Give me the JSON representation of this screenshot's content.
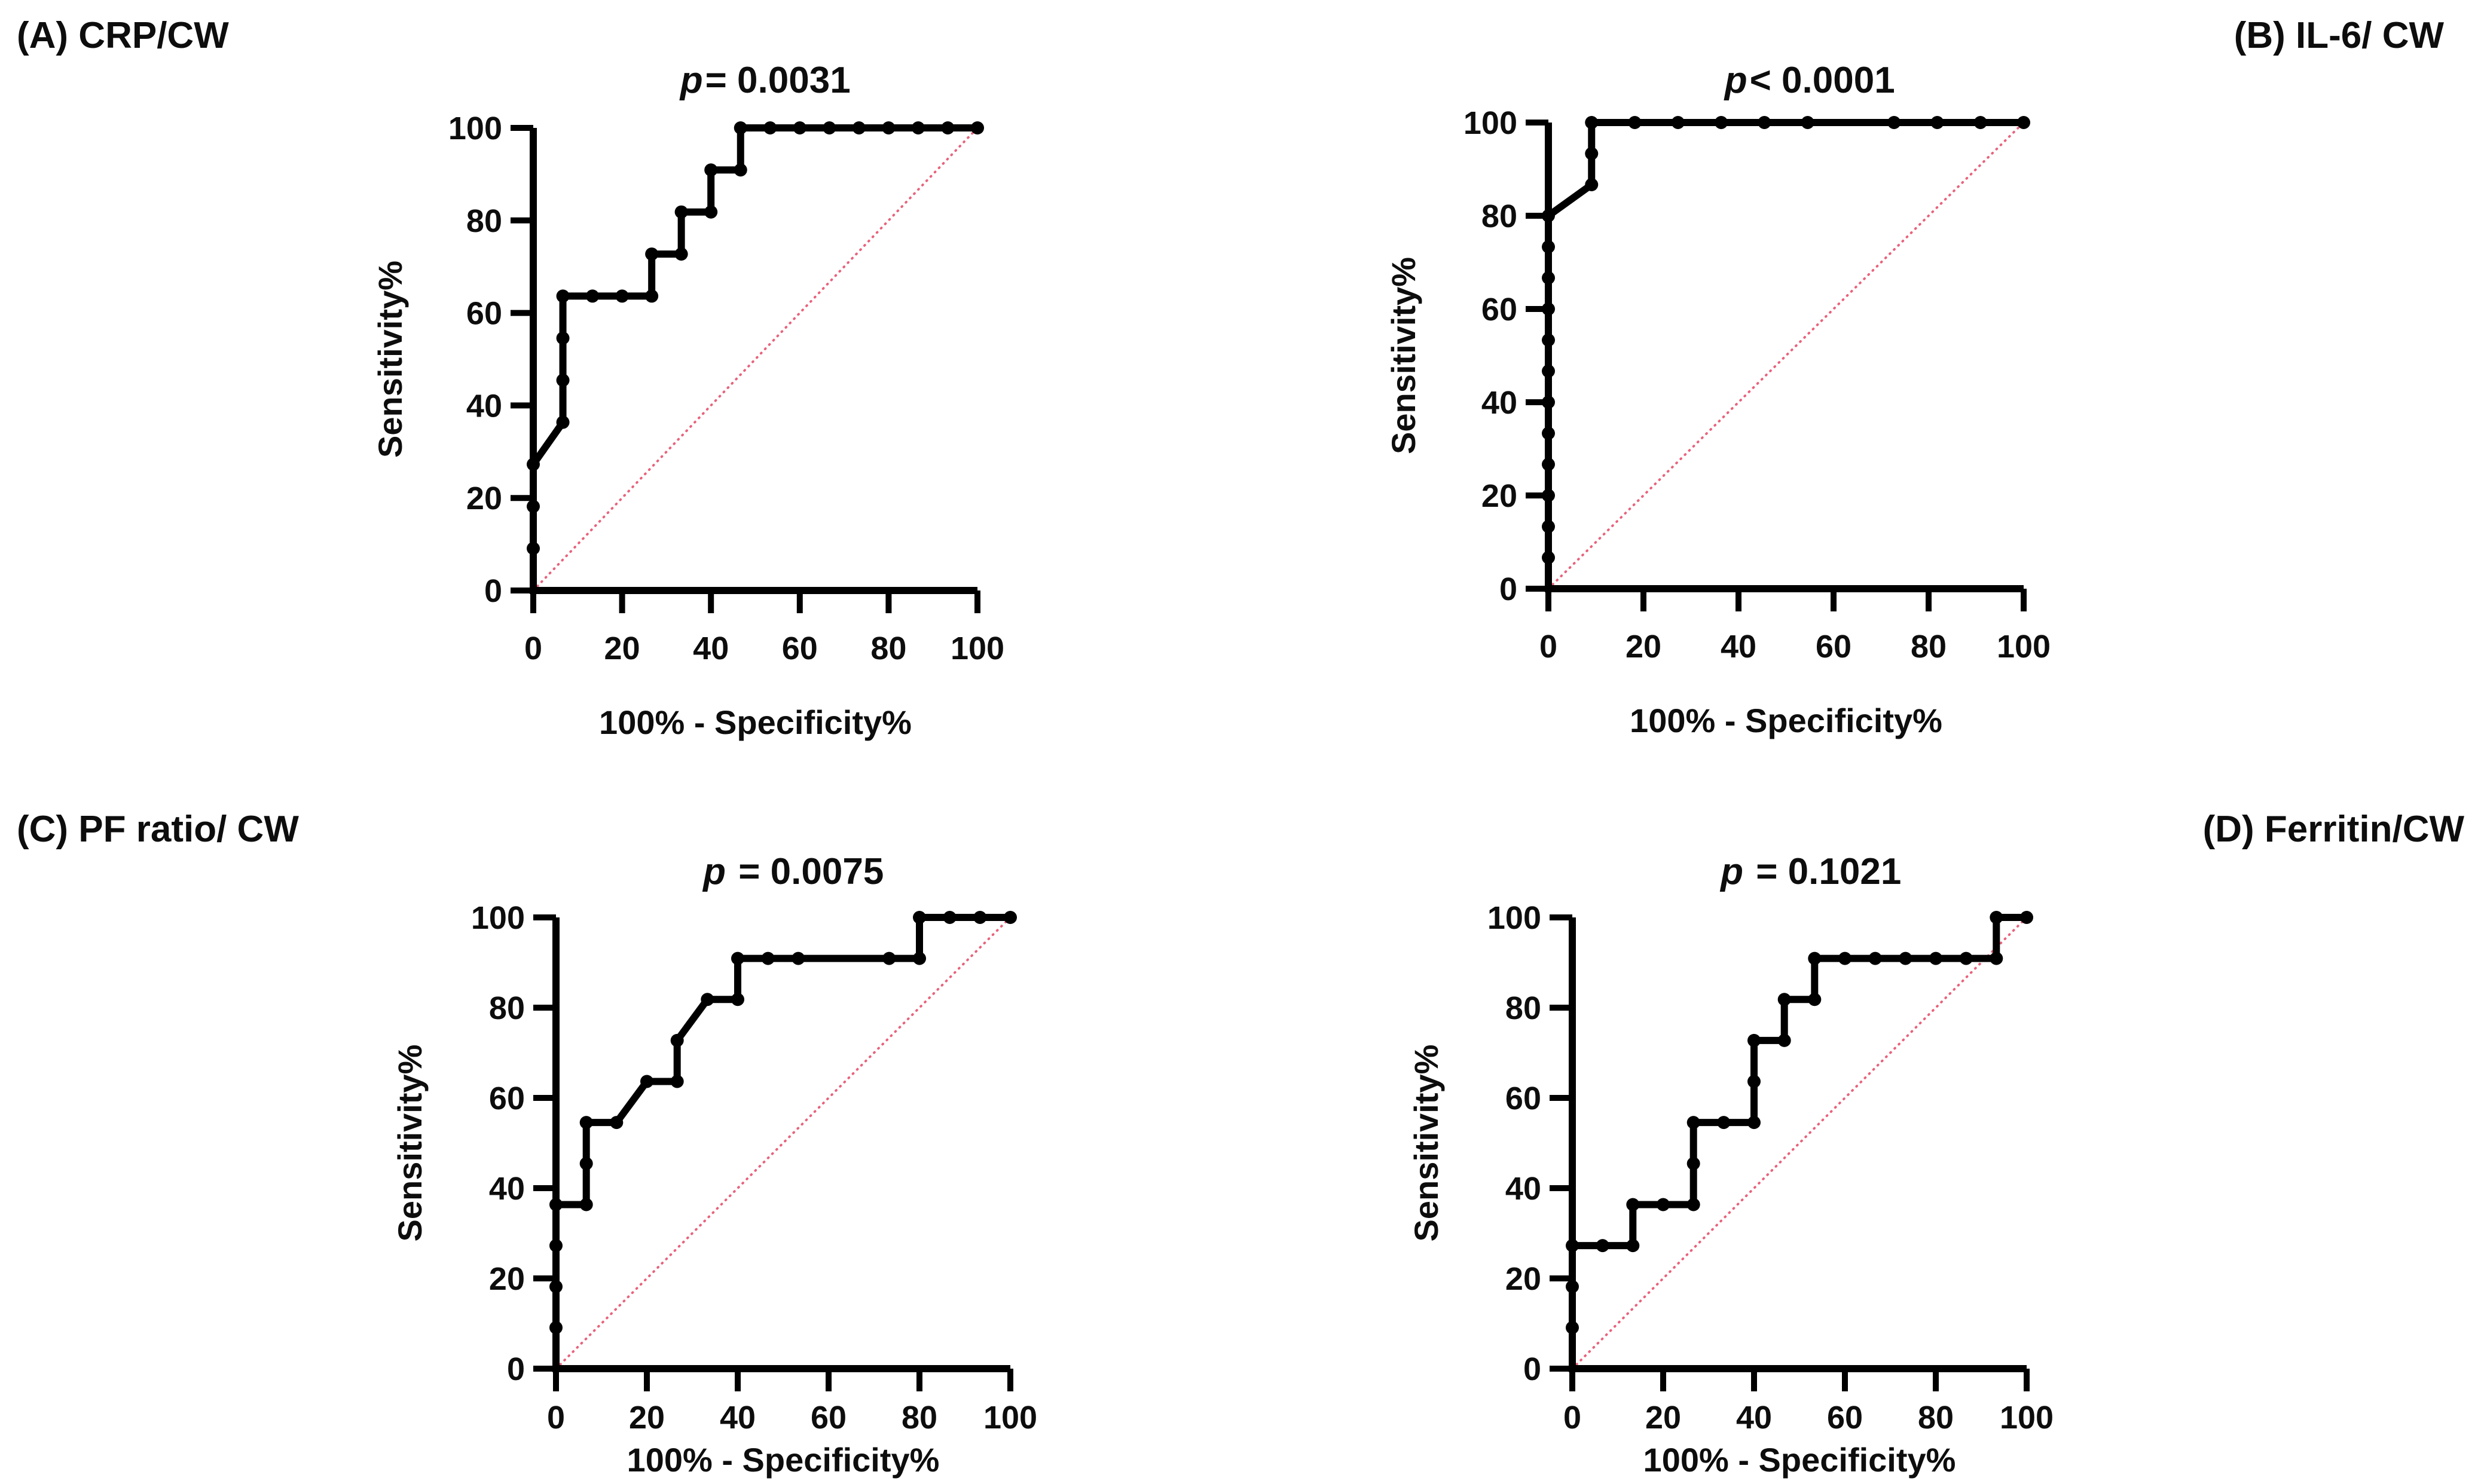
{
  "figure": {
    "background": "#ffffff",
    "text_color": "#0d0d0d",
    "curve_color": "#000000",
    "axis_color": "#000000",
    "reference_line_color": "#e8637c"
  },
  "chart_data": [
    {
      "id": "A",
      "type": "line",
      "panel_label": "(A) CRP/CW",
      "title": "p= 0.0031",
      "title_p": "p",
      "title_rest": "= 0.0031",
      "p_value": "0.0031",
      "xlabel": "100% - Specificity%",
      "ylabel": "Sensitivity%",
      "xlim": [
        0,
        100
      ],
      "ylim": [
        0,
        100
      ],
      "xticks": [
        0,
        20,
        40,
        60,
        80,
        100
      ],
      "yticks": [
        0,
        20,
        40,
        60,
        80,
        100
      ],
      "grid": false,
      "diagonal": {
        "from": [
          0,
          0
        ],
        "to": [
          100,
          100
        ],
        "color": "#e8637c",
        "style": "dotted"
      },
      "series": [
        {
          "name": "ROC curve",
          "color": "#000000",
          "points": [
            [
              0,
              0
            ],
            [
              0,
              9.09
            ],
            [
              0,
              18.18
            ],
            [
              0,
              27.27
            ],
            [
              6.67,
              36.36
            ],
            [
              6.67,
              45.45
            ],
            [
              6.67,
              54.55
            ],
            [
              6.67,
              63.64
            ],
            [
              13.33,
              63.64
            ],
            [
              20,
              63.64
            ],
            [
              26.67,
              63.64
            ],
            [
              26.67,
              72.73
            ],
            [
              33.33,
              72.73
            ],
            [
              33.33,
              81.82
            ],
            [
              40,
              81.82
            ],
            [
              40,
              90.91
            ],
            [
              46.67,
              90.91
            ],
            [
              46.67,
              100
            ],
            [
              53.33,
              100
            ],
            [
              60,
              100
            ],
            [
              66.67,
              100
            ],
            [
              73.33,
              100
            ],
            [
              80,
              100
            ],
            [
              86.67,
              100
            ],
            [
              93.33,
              100
            ],
            [
              100,
              100
            ]
          ],
          "markers": [
            [
              0,
              9.09
            ],
            [
              0,
              18.18
            ],
            [
              0,
              27.27
            ],
            [
              6.67,
              36.36
            ],
            [
              6.67,
              45.45
            ],
            [
              6.67,
              54.55
            ],
            [
              6.67,
              63.64
            ],
            [
              13.33,
              63.64
            ],
            [
              20,
              63.64
            ],
            [
              26.67,
              63.64
            ],
            [
              26.67,
              72.73
            ],
            [
              33.33,
              72.73
            ],
            [
              33.33,
              81.82
            ],
            [
              40,
              81.82
            ],
            [
              40,
              90.91
            ],
            [
              46.67,
              90.91
            ],
            [
              46.67,
              100
            ],
            [
              53.33,
              100
            ],
            [
              60,
              100
            ],
            [
              66.67,
              100
            ],
            [
              73.33,
              100
            ],
            [
              80,
              100
            ],
            [
              86.67,
              100
            ],
            [
              93.33,
              100
            ],
            [
              100,
              100
            ]
          ]
        }
      ]
    },
    {
      "id": "B",
      "type": "line",
      "panel_label": "(B) IL-6/ CW",
      "title": "p< 0.0001",
      "title_p": "p",
      "title_rest": "< 0.0001",
      "p_value": "<0.0001",
      "xlabel": "100% - Specificity%",
      "ylabel": "Sensitivity%",
      "xlim": [
        0,
        100
      ],
      "ylim": [
        0,
        100
      ],
      "xticks": [
        0,
        20,
        40,
        60,
        80,
        100
      ],
      "yticks": [
        0,
        20,
        40,
        60,
        80,
        100
      ],
      "grid": false,
      "diagonal": {
        "from": [
          0,
          0
        ],
        "to": [
          100,
          100
        ],
        "color": "#e8637c",
        "style": "dotted"
      },
      "series": [
        {
          "name": "ROC curve",
          "color": "#000000",
          "points": [
            [
              0,
              0
            ],
            [
              0,
              6.67
            ],
            [
              0,
              13.33
            ],
            [
              0,
              20
            ],
            [
              0,
              26.67
            ],
            [
              0,
              33.33
            ],
            [
              0,
              40
            ],
            [
              0,
              46.67
            ],
            [
              0,
              53.33
            ],
            [
              0,
              60
            ],
            [
              0,
              66.67
            ],
            [
              0,
              73.33
            ],
            [
              0,
              80
            ],
            [
              9.09,
              86.67
            ],
            [
              9.09,
              93.33
            ],
            [
              9.09,
              100
            ],
            [
              18.18,
              100
            ],
            [
              27.27,
              100
            ],
            [
              36.36,
              100
            ],
            [
              45.45,
              100
            ],
            [
              54.55,
              100
            ],
            [
              63.64,
              100
            ],
            [
              72.73,
              100
            ],
            [
              81.82,
              100
            ],
            [
              90.91,
              100
            ],
            [
              100,
              100
            ]
          ],
          "markers": [
            [
              0,
              6.67
            ],
            [
              0,
              13.33
            ],
            [
              0,
              20
            ],
            [
              0,
              26.67
            ],
            [
              0,
              33.33
            ],
            [
              0,
              40
            ],
            [
              0,
              46.67
            ],
            [
              0,
              53.33
            ],
            [
              0,
              60
            ],
            [
              0,
              66.67
            ],
            [
              0,
              73.33
            ],
            [
              0,
              80
            ],
            [
              9.09,
              86.67
            ],
            [
              9.09,
              93.33
            ],
            [
              9.09,
              100
            ],
            [
              18.18,
              100
            ],
            [
              27.27,
              100
            ],
            [
              36.36,
              100
            ],
            [
              45.45,
              100
            ],
            [
              54.55,
              100
            ],
            [
              72.73,
              100
            ],
            [
              81.82,
              100
            ],
            [
              90.91,
              100
            ],
            [
              100,
              100
            ]
          ]
        }
      ]
    },
    {
      "id": "C",
      "type": "line",
      "panel_label": "(C) PF ratio/ CW",
      "title": "p = 0.0075",
      "title_p": "p",
      "title_rest": " = 0.0075",
      "p_value": "0.0075",
      "xlabel": "100% - Specificity%",
      "ylabel": "Sensitivity%",
      "xlim": [
        0,
        100
      ],
      "ylim": [
        0,
        100
      ],
      "xticks": [
        0,
        20,
        40,
        60,
        80,
        100
      ],
      "yticks": [
        0,
        20,
        40,
        60,
        80,
        100
      ],
      "grid": false,
      "diagonal": {
        "from": [
          0,
          0
        ],
        "to": [
          100,
          100
        ],
        "color": "#e8637c",
        "style": "dotted"
      },
      "series": [
        {
          "name": "ROC curve",
          "color": "#000000",
          "points": [
            [
              0,
              0
            ],
            [
              0,
              9.09
            ],
            [
              0,
              18.18
            ],
            [
              0,
              27.27
            ],
            [
              0,
              36.36
            ],
            [
              6.67,
              36.36
            ],
            [
              6.67,
              45.45
            ],
            [
              6.67,
              54.55
            ],
            [
              13.33,
              54.55
            ],
            [
              20,
              63.64
            ],
            [
              26.67,
              63.64
            ],
            [
              26.67,
              72.73
            ],
            [
              33.33,
              81.82
            ],
            [
              40,
              81.82
            ],
            [
              40,
              90.91
            ],
            [
              46.67,
              90.91
            ],
            [
              53.33,
              90.91
            ],
            [
              73.33,
              90.91
            ],
            [
              80,
              90.91
            ],
            [
              80,
              100
            ],
            [
              86.67,
              100
            ],
            [
              93.33,
              100
            ],
            [
              100,
              100
            ]
          ],
          "markers": [
            [
              0,
              9.09
            ],
            [
              0,
              18.18
            ],
            [
              0,
              27.27
            ],
            [
              0,
              36.36
            ],
            [
              6.67,
              36.36
            ],
            [
              6.67,
              45.45
            ],
            [
              6.67,
              54.55
            ],
            [
              13.33,
              54.55
            ],
            [
              20,
              63.64
            ],
            [
              26.67,
              63.64
            ],
            [
              26.67,
              72.73
            ],
            [
              33.33,
              81.82
            ],
            [
              40,
              81.82
            ],
            [
              40,
              90.91
            ],
            [
              46.67,
              90.91
            ],
            [
              53.33,
              90.91
            ],
            [
              73.33,
              90.91
            ],
            [
              80,
              90.91
            ],
            [
              80,
              100
            ],
            [
              86.67,
              100
            ],
            [
              93.33,
              100
            ],
            [
              100,
              100
            ]
          ]
        }
      ]
    },
    {
      "id": "D",
      "type": "line",
      "panel_label": "(D) Ferritin/CW",
      "title": "p = 0.1021",
      "title_p": "p",
      "title_rest": " = 0.1021",
      "p_value": "0.1021",
      "xlabel": "100% - Specificity%",
      "ylabel": "Sensitivity%",
      "xlim": [
        0,
        100
      ],
      "ylim": [
        0,
        100
      ],
      "xticks": [
        0,
        20,
        40,
        60,
        80,
        100
      ],
      "yticks": [
        0,
        20,
        40,
        60,
        80,
        100
      ],
      "grid": false,
      "diagonal": {
        "from": [
          0,
          0
        ],
        "to": [
          100,
          100
        ],
        "color": "#e8637c",
        "style": "dotted"
      },
      "series": [
        {
          "name": "ROC curve",
          "color": "#000000",
          "points": [
            [
              0,
              0
            ],
            [
              0,
              9.09
            ],
            [
              0,
              18.18
            ],
            [
              0,
              27.27
            ],
            [
              6.67,
              27.27
            ],
            [
              13.33,
              27.27
            ],
            [
              13.33,
              36.36
            ],
            [
              20,
              36.36
            ],
            [
              26.67,
              36.36
            ],
            [
              26.67,
              45.45
            ],
            [
              26.67,
              54.55
            ],
            [
              33.33,
              54.55
            ],
            [
              40,
              54.55
            ],
            [
              40,
              63.64
            ],
            [
              40,
              72.73
            ],
            [
              46.67,
              72.73
            ],
            [
              46.67,
              81.82
            ],
            [
              53.33,
              81.82
            ],
            [
              53.33,
              90.91
            ],
            [
              60,
              90.91
            ],
            [
              66.67,
              90.91
            ],
            [
              73.33,
              90.91
            ],
            [
              80,
              90.91
            ],
            [
              86.67,
              90.91
            ],
            [
              93.33,
              90.91
            ],
            [
              93.33,
              100
            ],
            [
              100,
              100
            ]
          ],
          "markers": [
            [
              0,
              9.09
            ],
            [
              0,
              18.18
            ],
            [
              0,
              27.27
            ],
            [
              6.67,
              27.27
            ],
            [
              13.33,
              27.27
            ],
            [
              13.33,
              36.36
            ],
            [
              20,
              36.36
            ],
            [
              26.67,
              36.36
            ],
            [
              26.67,
              45.45
            ],
            [
              26.67,
              54.55
            ],
            [
              33.33,
              54.55
            ],
            [
              40,
              54.55
            ],
            [
              40,
              63.64
            ],
            [
              40,
              72.73
            ],
            [
              46.67,
              72.73
            ],
            [
              46.67,
              81.82
            ],
            [
              53.33,
              81.82
            ],
            [
              53.33,
              90.91
            ],
            [
              60,
              90.91
            ],
            [
              66.67,
              90.91
            ],
            [
              73.33,
              90.91
            ],
            [
              80,
              90.91
            ],
            [
              86.67,
              90.91
            ],
            [
              93.33,
              90.91
            ],
            [
              93.33,
              100
            ],
            [
              100,
              100
            ]
          ]
        }
      ]
    }
  ]
}
